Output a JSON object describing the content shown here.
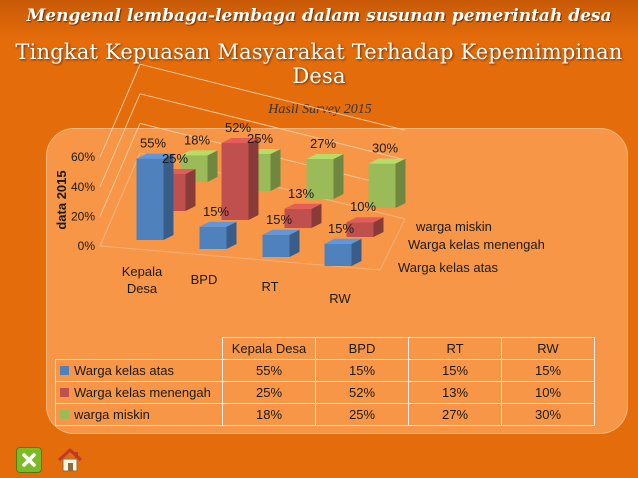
{
  "header": "Mengenal lembaga-lembaga dalam susunan pemerintah desa",
  "title": "Tingkat Kepuasan Masyarakat Terhadap Kepemimpinan Desa",
  "buttons": {
    "close_icon": "close-icon",
    "home_icon": "home-icon"
  },
  "colors": {
    "series": [
      "#4f81bd",
      "#c0504d",
      "#9bbb59"
    ],
    "background": "#e46c0a",
    "panel": "#f79646"
  },
  "chart_data": {
    "type": "bar",
    "subtype": "3d-clustered",
    "title": "Hasil Survey 2015",
    "ylabel": "data 2015",
    "xlabel": "",
    "ylim": [
      0,
      60
    ],
    "yticks": [
      "0%",
      "20%",
      "40%",
      "60%"
    ],
    "categories": [
      "Kepala Desa",
      "BPD",
      "RT",
      "RW"
    ],
    "series": [
      {
        "name": "Warga kelas atas",
        "values": [
          55,
          15,
          15,
          15
        ],
        "labels": [
          "55%",
          "15%",
          "15%",
          "15%"
        ]
      },
      {
        "name": "Warga kelas menengah",
        "values": [
          25,
          52,
          13,
          10
        ],
        "labels": [
          "25%",
          "52%",
          "13%",
          "10%"
        ]
      },
      {
        "name": "warga miskin",
        "values": [
          18,
          25,
          27,
          30
        ],
        "labels": [
          "18%",
          "25%",
          "27%",
          "30%"
        ]
      }
    ],
    "depth_labels": [
      "warga miskin",
      "Warga kelas menengah",
      "Warga kelas atas"
    ],
    "grid": true,
    "legend": "data-table"
  }
}
